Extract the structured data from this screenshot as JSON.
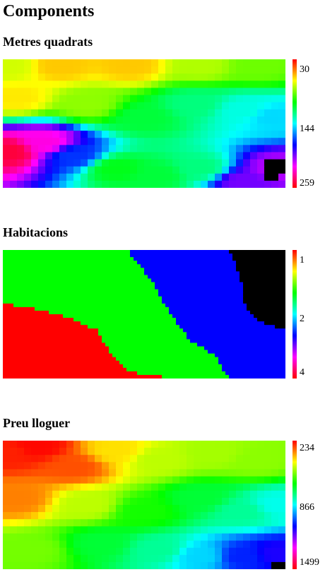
{
  "page_title": "Components",
  "colors": {
    "colormap_stops": [
      "#ff0000",
      "#ffff00",
      "#00ff00",
      "#00ffff",
      "#0000ff",
      "#ff00ff",
      "#ff0000"
    ],
    "masked": "#000000"
  },
  "chart_data": [
    {
      "type": "heatmap",
      "title": "Metres quadrats",
      "colorbar_ticks": [
        "30",
        "144",
        "259"
      ],
      "range": [
        30,
        259
      ],
      "colorbar_direction": "top-to-bottom",
      "grid": false,
      "nx": 40,
      "ny": 18,
      "seeds": [
        [
          0.02,
          0.05,
          75
        ],
        [
          0.2,
          0.05,
          60
        ],
        [
          0.45,
          0.05,
          60
        ],
        [
          0.7,
          0.05,
          80
        ],
        [
          0.9,
          0.05,
          90
        ],
        [
          0.05,
          0.3,
          65
        ],
        [
          0.3,
          0.35,
          85
        ],
        [
          0.5,
          0.45,
          115
        ],
        [
          0.68,
          0.35,
          125
        ],
        [
          0.85,
          0.4,
          140
        ],
        [
          0.95,
          0.45,
          150
        ],
        [
          0.02,
          0.72,
          250
        ],
        [
          0.15,
          0.65,
          225
        ],
        [
          0.25,
          0.75,
          175
        ],
        [
          0.4,
          0.85,
          110
        ],
        [
          0.55,
          0.9,
          115
        ],
        [
          0.7,
          0.85,
          125
        ],
        [
          0.85,
          0.95,
          200
        ],
        [
          0.97,
          0.85,
          210
        ]
      ],
      "masked_cells": [
        [
          37,
          14
        ],
        [
          38,
          14
        ],
        [
          39,
          14
        ],
        [
          37,
          15
        ],
        [
          38,
          15
        ],
        [
          39,
          15
        ],
        [
          37,
          16
        ],
        [
          38,
          16
        ]
      ]
    },
    {
      "type": "heatmap",
      "title": "Habitacions",
      "colorbar_ticks": [
        "1",
        "2",
        "4"
      ],
      "range": [
        1,
        4
      ],
      "colorbar_direction": "top-to-bottom",
      "grid": false,
      "nx": 80,
      "ny": 36,
      "classes": [
        {
          "value": 4,
          "color": "#ff0000"
        },
        {
          "value": 2,
          "color": "#00ff00"
        },
        {
          "value": 3,
          "color": "#0000ff"
        },
        {
          "value": 0,
          "color": "#000000"
        }
      ],
      "class_boundaries": [
        [
          [
            0,
            0.42
          ],
          [
            0.1,
            0.45
          ],
          [
            0.22,
            0.52
          ],
          [
            0.33,
            0.62
          ],
          [
            0.38,
            0.8
          ],
          [
            0.45,
            0.95
          ],
          [
            0.6,
            1.0
          ]
        ],
        [
          [
            0.44,
            0
          ],
          [
            0.52,
            0.22
          ],
          [
            0.58,
            0.45
          ],
          [
            0.66,
            0.7
          ],
          [
            0.75,
            0.82
          ],
          [
            0.8,
            1.0
          ]
        ],
        [
          [
            0.8,
            0
          ],
          [
            0.84,
            0.2
          ],
          [
            0.86,
            0.45
          ],
          [
            0.9,
            0.55
          ],
          [
            1.0,
            0.62
          ]
        ]
      ]
    },
    {
      "type": "heatmap",
      "title": "Preu lloguer",
      "colorbar_ticks": [
        "234",
        "866",
        "1499"
      ],
      "range": [
        234,
        1499
      ],
      "colorbar_direction": "top-to-bottom",
      "grid": false,
      "nx": 40,
      "ny": 18,
      "seeds": [
        [
          0.02,
          0.1,
          260
        ],
        [
          0.12,
          0.05,
          240
        ],
        [
          0.25,
          0.2,
          300
        ],
        [
          0.4,
          0.08,
          420
        ],
        [
          0.55,
          0.15,
          500
        ],
        [
          0.75,
          0.1,
          520
        ],
        [
          0.9,
          0.15,
          540
        ],
        [
          0.05,
          0.45,
          340
        ],
        [
          0.3,
          0.5,
          500
        ],
        [
          0.5,
          0.55,
          640
        ],
        [
          0.7,
          0.45,
          700
        ],
        [
          0.85,
          0.55,
          780
        ],
        [
          0.97,
          0.5,
          850
        ],
        [
          0.1,
          0.85,
          560
        ],
        [
          0.35,
          0.8,
          700
        ],
        [
          0.55,
          0.85,
          780
        ],
        [
          0.7,
          0.9,
          900
        ],
        [
          0.85,
          0.9,
          1050
        ],
        [
          0.97,
          0.88,
          1100
        ]
      ],
      "masked_cells": [
        [
          38,
          17
        ],
        [
          39,
          17
        ]
      ]
    }
  ]
}
